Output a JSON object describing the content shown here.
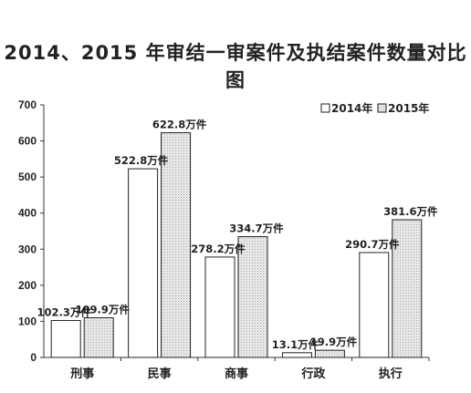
{
  "chart_data": {
    "type": "bar",
    "title": "2014、2015 年审结一审案件及执结案件数量对比图",
    "categories": [
      "刑事",
      "民事",
      "商事",
      "行政",
      "执行"
    ],
    "series": [
      {
        "name": "2014年",
        "values": [
          102.3,
          522.8,
          278.2,
          13.1,
          290.7
        ],
        "labels": [
          "102.3万件",
          "522.8万件",
          "278.2万件",
          "13.1万件",
          "290.7万件"
        ],
        "color": "#ffffff"
      },
      {
        "name": "2015年",
        "values": [
          109.9,
          622.8,
          334.7,
          19.9,
          381.6
        ],
        "labels": [
          "109.9万件",
          "622.8万件",
          "334.7万件",
          "19.9万件",
          "381.6万件"
        ],
        "color": "#e6e6e6"
      }
    ],
    "yticks": [
      "0",
      "100",
      "200",
      "300",
      "400",
      "500",
      "600",
      "700"
    ],
    "ylim": [
      0,
      700
    ],
    "grid": false,
    "legend_position": "top-right"
  }
}
